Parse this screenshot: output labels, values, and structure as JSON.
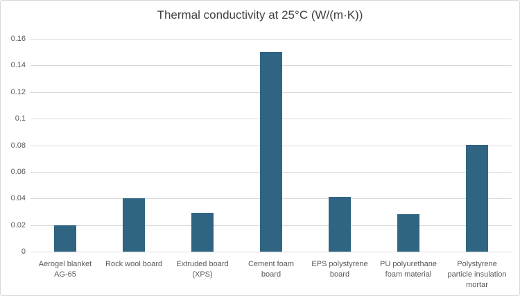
{
  "chart": {
    "title": "Thermal conductivity at 25°C (W/(m·K))"
  },
  "chart_data": {
    "type": "bar",
    "title": "Thermal conductivity at 25°C (W/(m·K))",
    "categories": [
      "Aerogel blanket AG-65",
      "Rock wool board",
      "Extruded board (XPS)",
      "Cement foam board",
      "EPS polystyrene board",
      "PU polyurethane foam material",
      "Polystyrene particle insulation mortar"
    ],
    "category_label_lines": [
      [
        "Aerogel blanket",
        "AG-65"
      ],
      [
        "Rock wool board"
      ],
      [
        "Extruded board",
        "(XPS)"
      ],
      [
        "Cement foam",
        "board"
      ],
      [
        "EPS polystyrene",
        "board"
      ],
      [
        "PU polyurethane",
        "foam material"
      ],
      [
        "Polystyrene",
        "particle insulation",
        "mortar"
      ]
    ],
    "values": [
      0.02,
      0.04,
      0.029,
      0.15,
      0.041,
      0.028,
      0.08
    ],
    "xlabel": "",
    "ylabel": "",
    "ylim": [
      0,
      0.16
    ],
    "ytick_step": 0.02,
    "ytick_labels": [
      "0",
      "0.02",
      "0.04",
      "0.06",
      "0.08",
      "0.1",
      "0.12",
      "0.14",
      "0.16"
    ],
    "grid": true,
    "legend": false,
    "colors": {
      "bar": "#2f6482",
      "gridline": "#d9d9d9",
      "tick_label": "#595959",
      "title": "#404040"
    }
  }
}
